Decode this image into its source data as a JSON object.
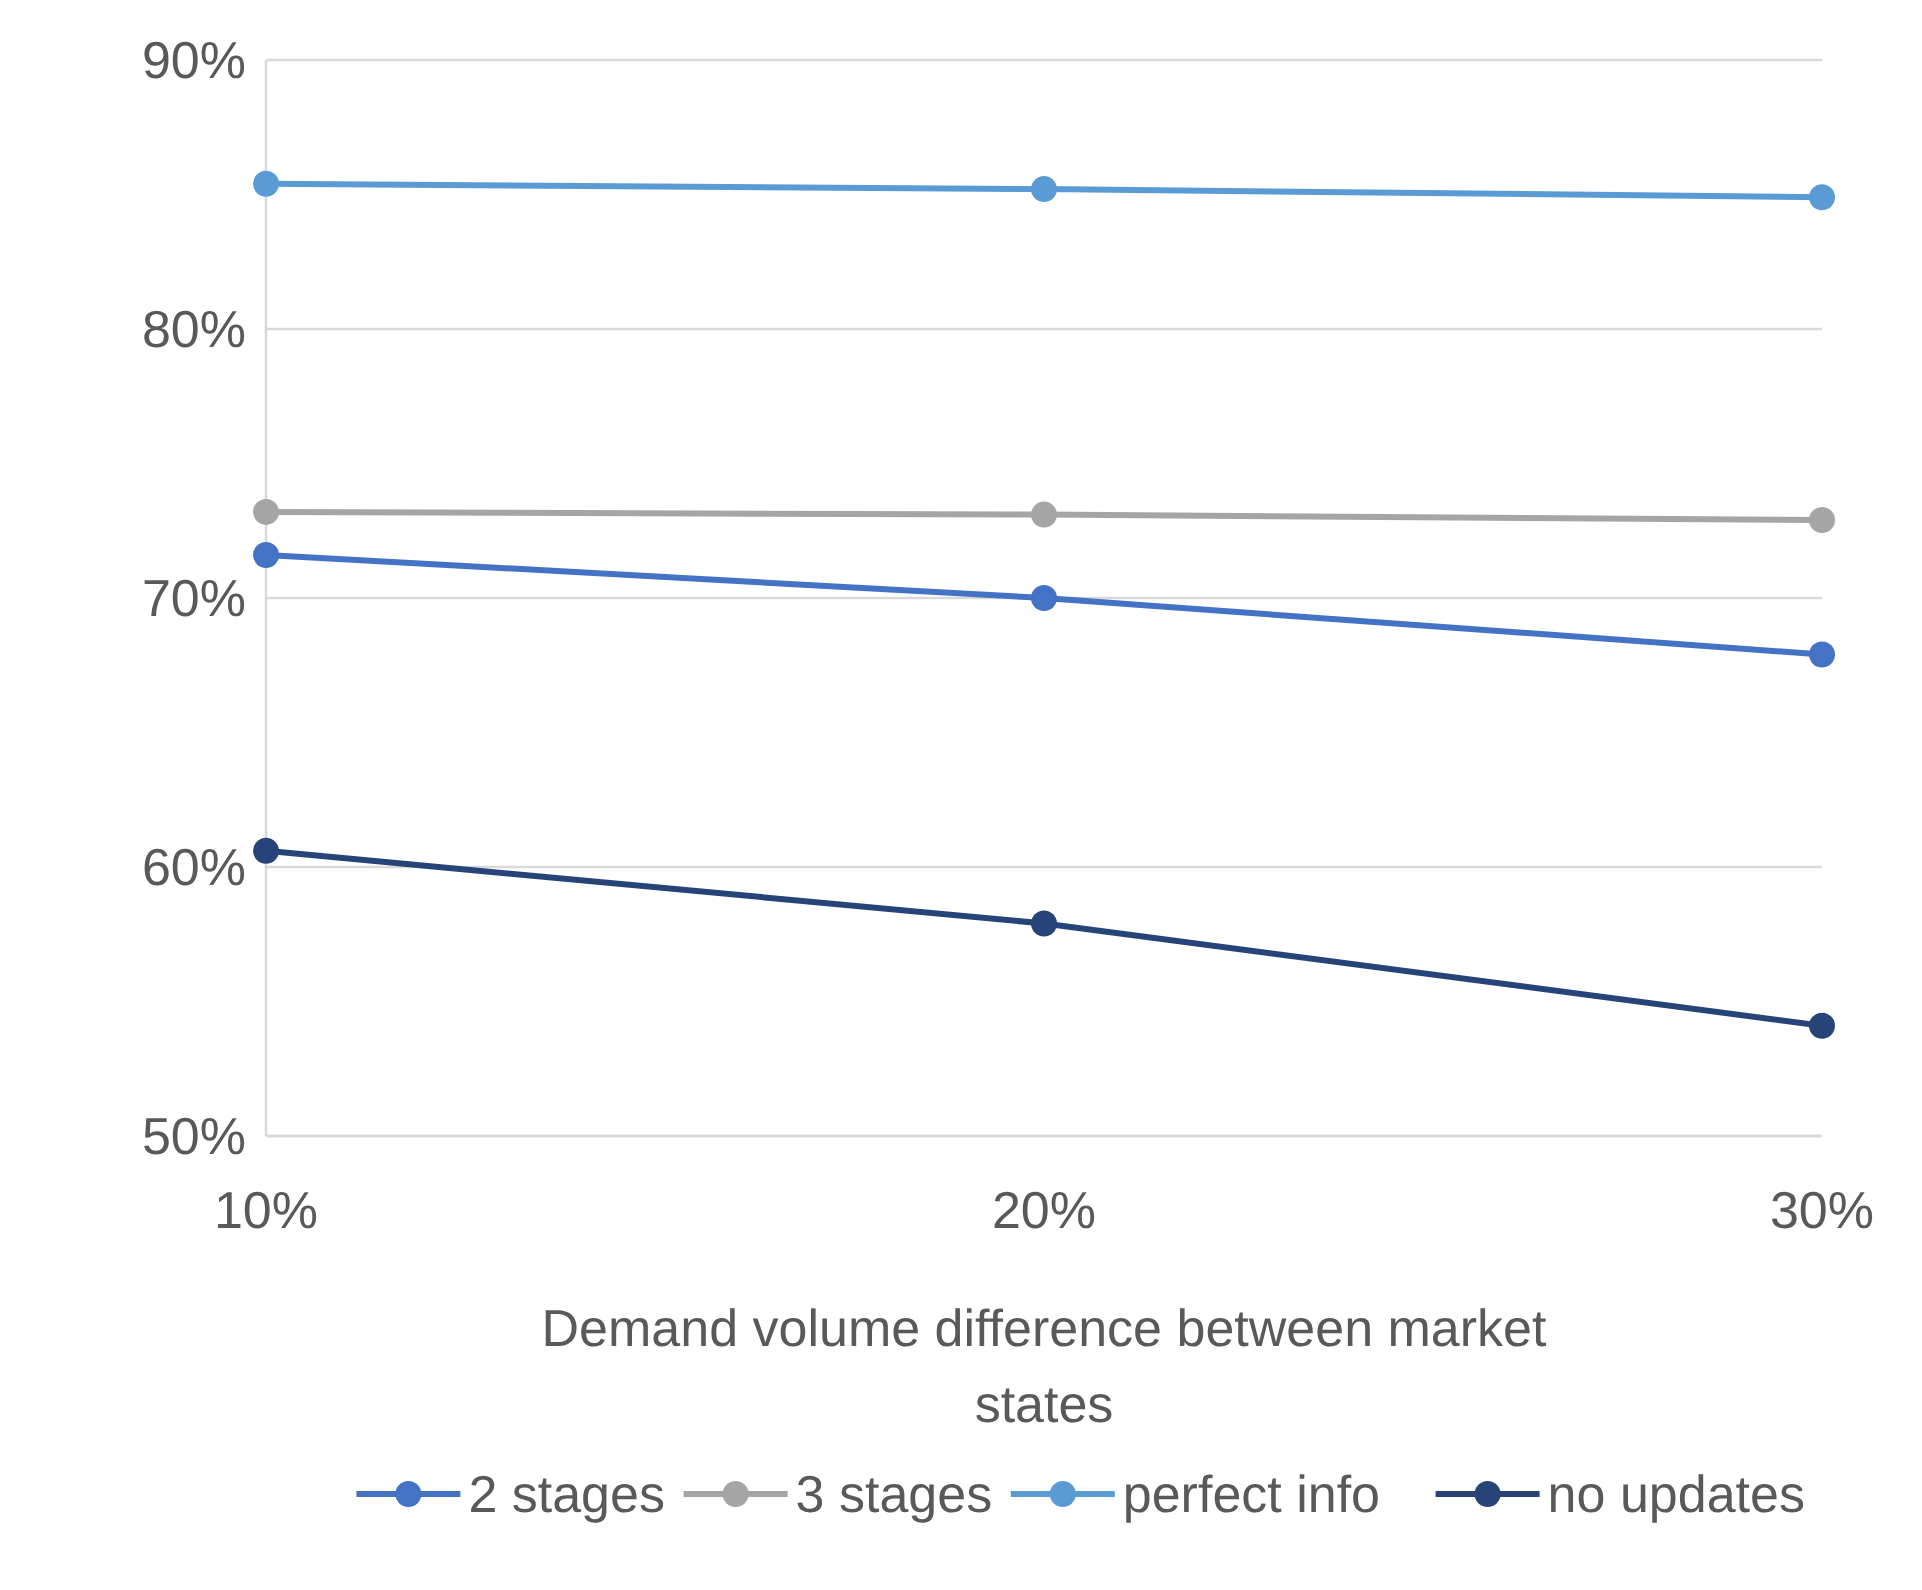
{
  "chart_data": {
    "type": "line",
    "xlabel": "Demand volume difference between market states",
    "x": [
      10,
      20,
      30
    ],
    "xlim": [
      10,
      30
    ],
    "xticks": [
      {
        "value": 10,
        "label": "10%"
      },
      {
        "value": 20,
        "label": "20%"
      },
      {
        "value": 30,
        "label": "30%"
      }
    ],
    "ylim": [
      50,
      90
    ],
    "yticks": [
      {
        "value": 50,
        "label": "50%"
      },
      {
        "value": 60,
        "label": "60%"
      },
      {
        "value": 70,
        "label": "70%"
      },
      {
        "value": 80,
        "label": "80%"
      },
      {
        "value": 90,
        "label": "90%"
      }
    ],
    "series": [
      {
        "name": "2 stages",
        "color": "#4472c4",
        "values": [
          71.6,
          70.0,
          67.9
        ]
      },
      {
        "name": "3 stages",
        "color": "#a5a5a5",
        "values": [
          73.2,
          73.1,
          72.9
        ]
      },
      {
        "name": "perfect info",
        "color": "#5b9bd5",
        "values": [
          85.4,
          85.2,
          84.9
        ]
      },
      {
        "name": "no updates",
        "color": "#264478",
        "values": [
          60.6,
          57.9,
          54.1
        ]
      }
    ],
    "grid": "y",
    "legend": "bottom",
    "marker": "circle",
    "line_style": "solid"
  }
}
